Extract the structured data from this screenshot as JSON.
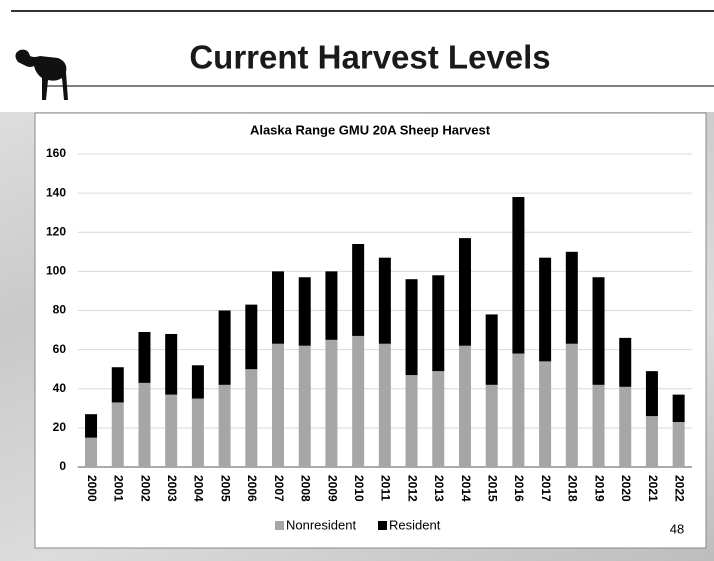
{
  "slide": {
    "title": "Current Harvest Levels",
    "page_number": "48"
  },
  "chart_data": {
    "type": "bar",
    "stacked": true,
    "title": "Alaska Range GMU 20A Sheep Harvest",
    "categories": [
      "2000",
      "2001",
      "2002",
      "2003",
      "2004",
      "2005",
      "2006",
      "2007",
      "2008",
      "2009",
      "2010",
      "2011",
      "2012",
      "2013",
      "2014",
      "2015",
      "2016",
      "2017",
      "2018",
      "2019",
      "2020",
      "2021",
      "2022"
    ],
    "series": [
      {
        "name": "Nonresident",
        "color": "#a6a6a6",
        "values": [
          15,
          33,
          43,
          37,
          35,
          42,
          50,
          63,
          62,
          65,
          67,
          63,
          47,
          49,
          62,
          42,
          58,
          54,
          63,
          42,
          41,
          26,
          23
        ]
      },
      {
        "name": "Resident",
        "color": "#000000",
        "values": [
          12,
          18,
          26,
          31,
          17,
          38,
          33,
          37,
          35,
          35,
          47,
          44,
          49,
          49,
          55,
          36,
          80,
          53,
          47,
          55,
          25,
          23,
          14
        ]
      }
    ],
    "ylim": [
      0,
      160
    ],
    "yticks": [
      0,
      20,
      40,
      60,
      80,
      100,
      120,
      140,
      160
    ],
    "grid": true,
    "legend": "bottom"
  }
}
